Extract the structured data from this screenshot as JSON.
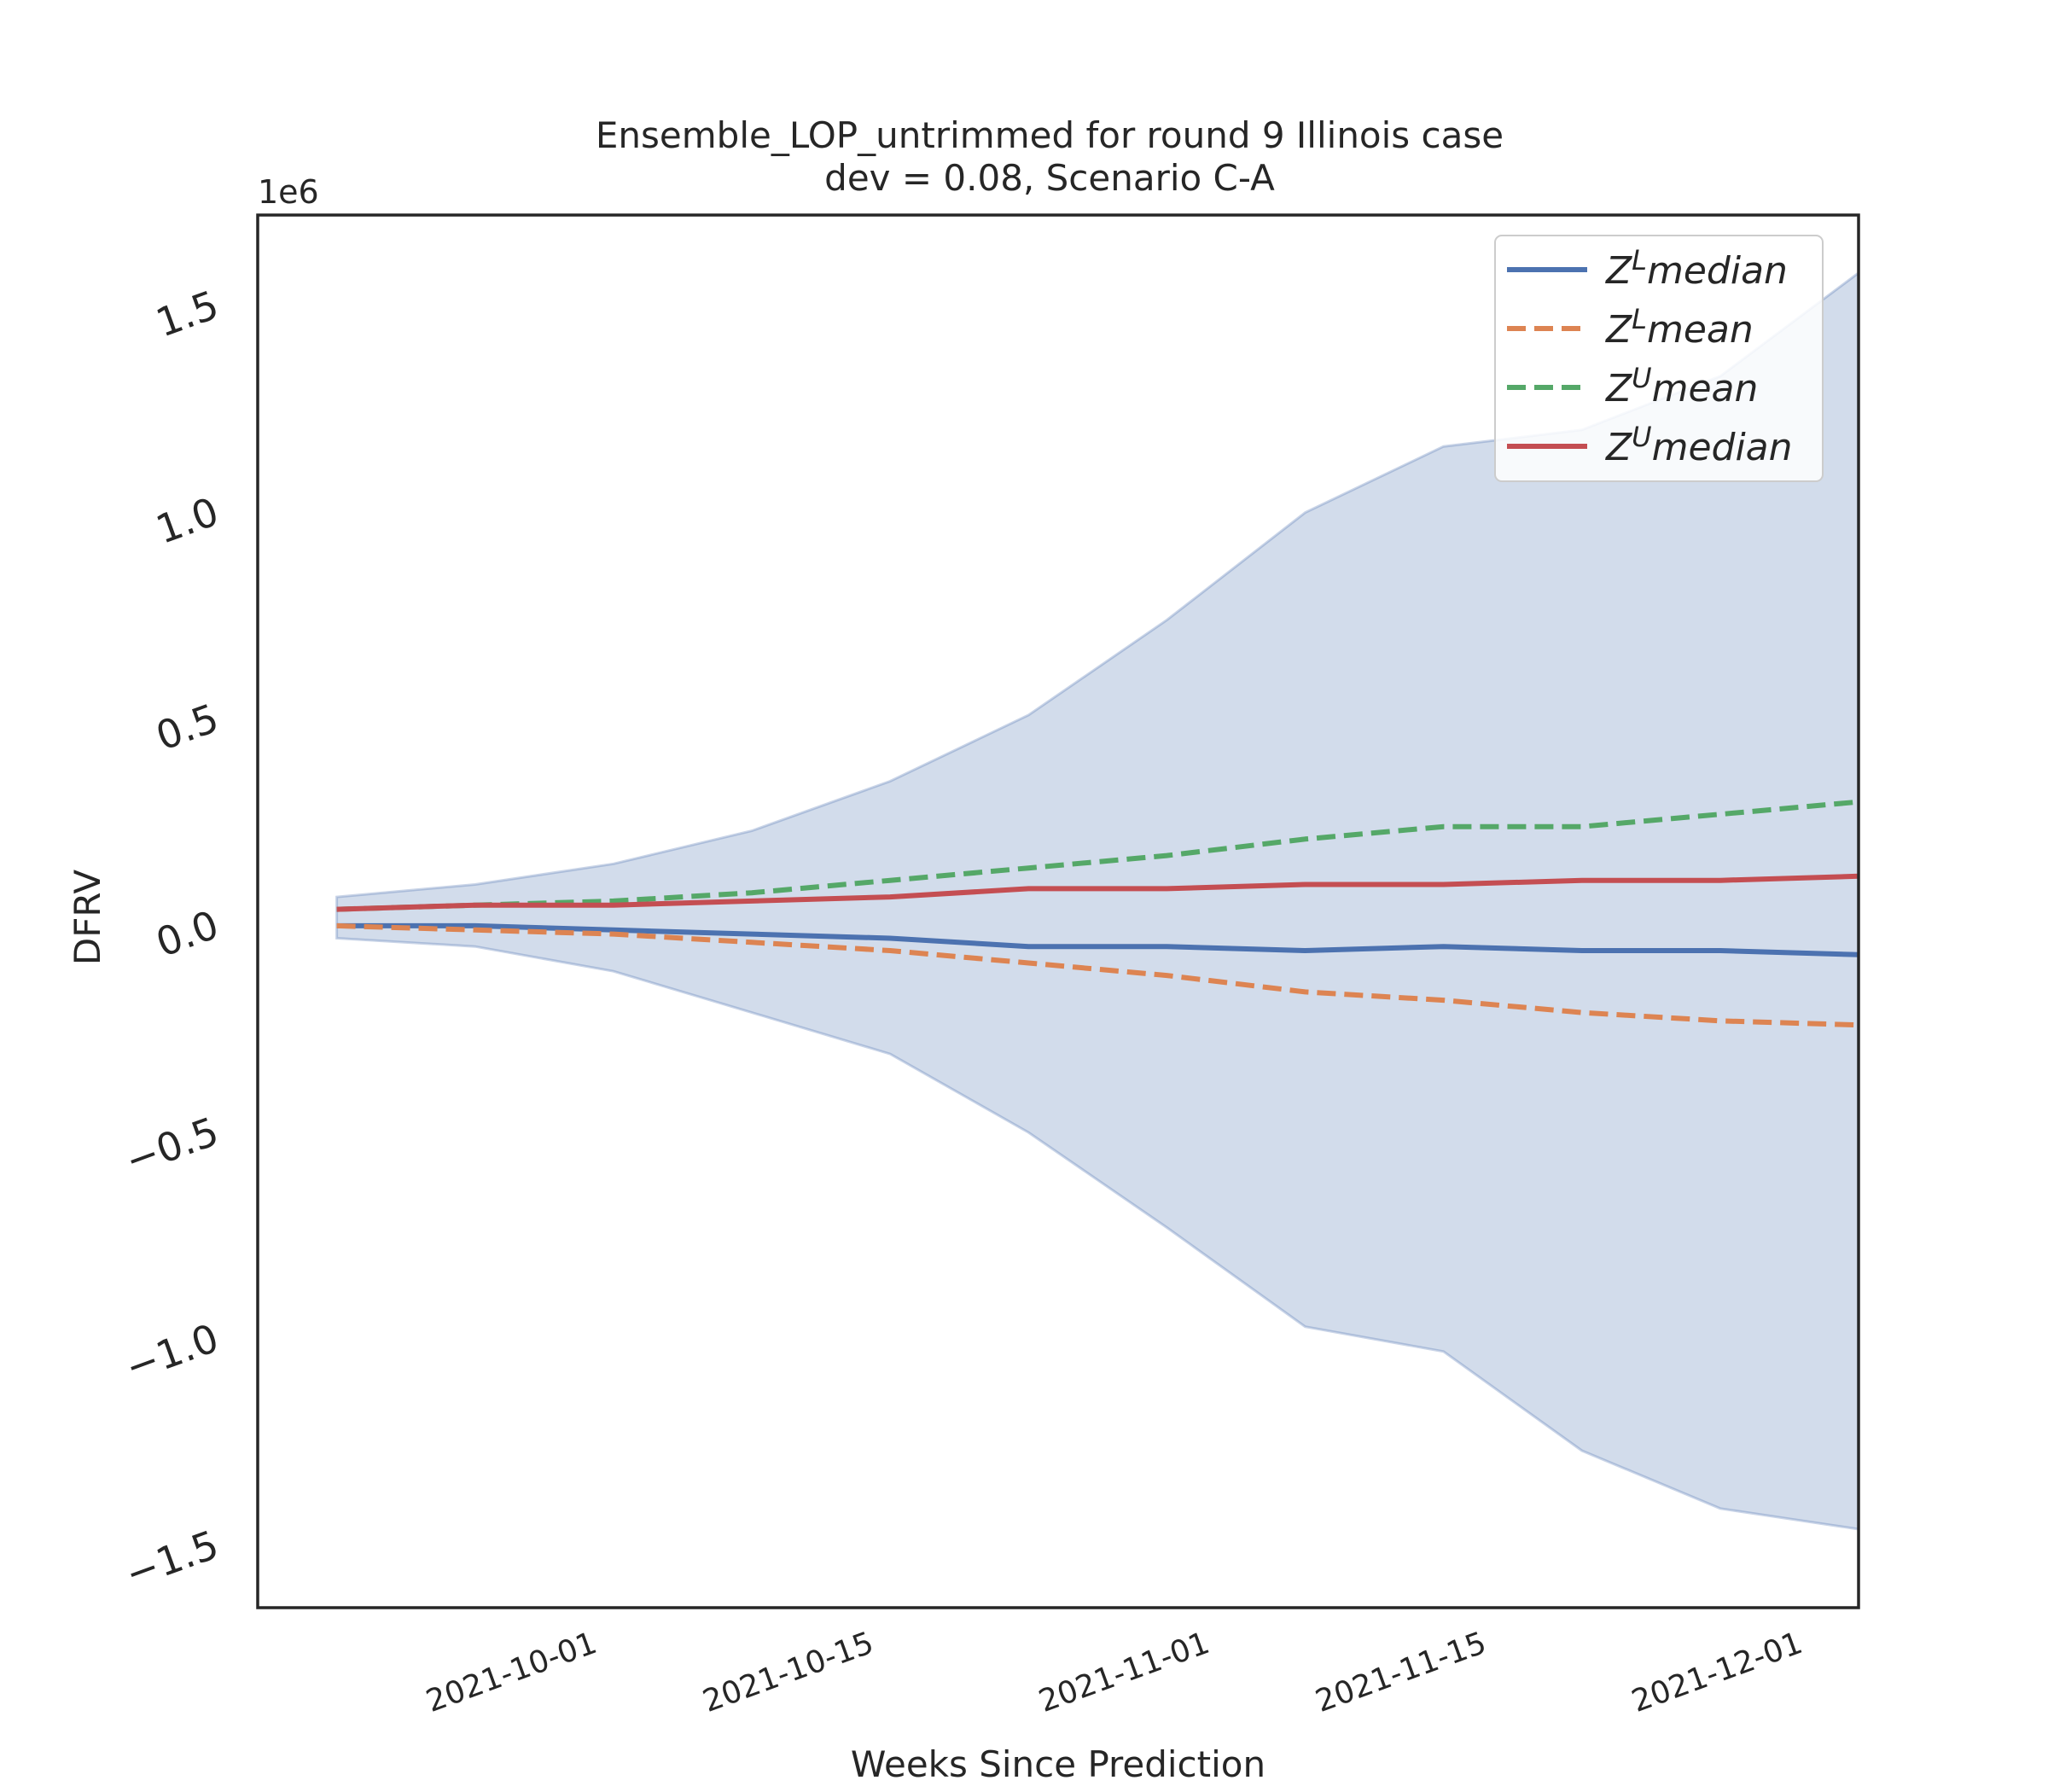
{
  "chart_data": {
    "type": "line",
    "title": "Ensemble_LOP_untrimmed for round 9 Illinois case",
    "subtitle": "dev = 0.08, Scenario C-A",
    "xlabel": "Weeks Since Prediction",
    "ylabel": "DFRV",
    "y_offset_label": "1e6",
    "y_scale_factor": 1000000,
    "xlim": [
      "2021-09-14",
      "2021-12-04"
    ],
    "ylim": [
      -1.65,
      1.72
    ],
    "x_ticks": [
      "2021-10-01",
      "2021-10-15",
      "2021-11-01",
      "2021-11-15",
      "2021-12-01"
    ],
    "y_ticks": [
      -1.5,
      -1.0,
      -0.5,
      0.0,
      0.5,
      1.0,
      1.5
    ],
    "y_tick_labels": [
      "−1.5",
      "−1.0",
      "−0.5",
      "0.0",
      "0.5",
      "1.0",
      "1.5"
    ],
    "x": [
      "2021-09-18",
      "2021-09-25",
      "2021-10-02",
      "2021-10-09",
      "2021-10-16",
      "2021-10-23",
      "2021-10-30",
      "2021-11-06",
      "2021-11-13",
      "2021-11-20",
      "2021-11-27",
      "2021-12-04"
    ],
    "band": {
      "upper": [
        0.07,
        0.1,
        0.15,
        0.23,
        0.35,
        0.51,
        0.74,
        1.0,
        1.16,
        1.2,
        1.33,
        1.58
      ],
      "lower": [
        -0.03,
        -0.05,
        -0.11,
        -0.21,
        -0.31,
        -0.5,
        -0.73,
        -0.97,
        -1.03,
        -1.27,
        -1.41,
        -1.46
      ],
      "color": "#4c72b0"
    },
    "series": [
      {
        "name": "Z^L median",
        "values": [
          0.0,
          0.0,
          -0.01,
          -0.02,
          -0.03,
          -0.05,
          -0.05,
          -0.06,
          -0.05,
          -0.06,
          -0.06,
          -0.07
        ],
        "color": "#4c72b0",
        "style": "solid"
      },
      {
        "name": "Z^L mean",
        "values": [
          0.0,
          -0.01,
          -0.02,
          -0.04,
          -0.06,
          -0.09,
          -0.12,
          -0.16,
          -0.18,
          -0.21,
          -0.23,
          -0.24
        ],
        "color": "#dd8452",
        "style": "dashed"
      },
      {
        "name": "Z^U mean",
        "values": [
          0.04,
          0.05,
          0.06,
          0.08,
          0.11,
          0.14,
          0.17,
          0.21,
          0.24,
          0.24,
          0.27,
          0.3
        ],
        "color": "#55a868",
        "style": "dashed"
      },
      {
        "name": "Z^U median",
        "values": [
          0.04,
          0.05,
          0.05,
          0.06,
          0.07,
          0.09,
          0.09,
          0.1,
          0.1,
          0.11,
          0.11,
          0.12
        ],
        "color": "#c44e52",
        "style": "solid"
      }
    ],
    "legend_position": "top-right",
    "grid": false
  },
  "legend": [
    {
      "base": "Z",
      "sup": "L",
      "rest": "median"
    },
    {
      "base": "Z",
      "sup": "L",
      "rest": "mean"
    },
    {
      "base": "Z",
      "sup": "U",
      "rest": "mean"
    },
    {
      "base": "Z",
      "sup": "U",
      "rest": "median"
    }
  ]
}
